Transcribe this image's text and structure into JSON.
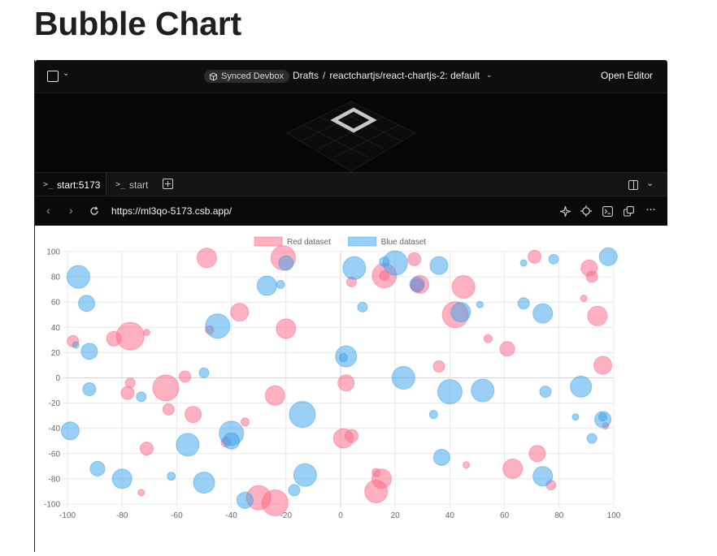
{
  "page": {
    "title": "Bubble Chart"
  },
  "topbar": {
    "devbox_label": "Synced Devbox",
    "breadcrumb": {
      "folder": "Drafts",
      "separator": "/",
      "project": "reactchartjs/react-chartjs-2: default"
    },
    "open_editor_label": "Open Editor"
  },
  "tabs": [
    {
      "glyph": ">_",
      "label": "start:5173",
      "active": true
    },
    {
      "glyph": ">_",
      "label": "start",
      "active": false
    }
  ],
  "browser": {
    "url": "https://ml3qo-5173.csb.app/"
  },
  "icons": {
    "tab_add": "plus-square-icon",
    "split": "split-view-icon",
    "back": "back-arrow-icon",
    "forward": "forward-arrow-icon",
    "reload": "reload-icon",
    "sparkle": "sparkle-icon",
    "crosshair": "crosshair-icon",
    "terminal": "terminal-icon",
    "popout": "popout-icon",
    "more": "more-icon"
  },
  "chart_data": {
    "type": "scatter",
    "subtype": "bubble",
    "title": "",
    "xlabel": "",
    "ylabel": "",
    "xlim": [
      -100,
      100
    ],
    "ylim": [
      -100,
      100
    ],
    "xticks": [
      -100,
      -80,
      -60,
      -40,
      -20,
      0,
      20,
      40,
      60,
      80,
      100
    ],
    "yticks": [
      -100,
      -80,
      -60,
      -40,
      -20,
      0,
      20,
      40,
      60,
      80,
      100
    ],
    "grid": true,
    "legend_position": "top",
    "series": [
      {
        "name": "Red dataset",
        "color": "#ff6384",
        "fill": "rgba(255, 99, 132, 0.5)",
        "points": [
          {
            "x": -49,
            "y": 95,
            "r": 12
          },
          {
            "x": -21,
            "y": 95,
            "r": 15
          },
          {
            "x": -98,
            "y": 29,
            "r": 7
          },
          {
            "x": -83,
            "y": 31,
            "r": 9
          },
          {
            "x": -77,
            "y": 33,
            "r": 17
          },
          {
            "x": -71,
            "y": 36,
            "r": 4
          },
          {
            "x": -48,
            "y": 38,
            "r": 5
          },
          {
            "x": -37,
            "y": 52,
            "r": 11
          },
          {
            "x": -20,
            "y": 39,
            "r": 12
          },
          {
            "x": 4,
            "y": 76,
            "r": 6
          },
          {
            "x": 16,
            "y": 81,
            "r": 15
          },
          {
            "x": 16,
            "y": 81,
            "r": 6
          },
          {
            "x": 27,
            "y": 94,
            "r": 8
          },
          {
            "x": 29,
            "y": 74,
            "r": 11
          },
          {
            "x": 28,
            "y": 73,
            "r": 8
          },
          {
            "x": 45,
            "y": 72,
            "r": 14
          },
          {
            "x": 42,
            "y": 50,
            "r": 16
          },
          {
            "x": 54,
            "y": 31,
            "r": 5
          },
          {
            "x": 61,
            "y": 23,
            "r": 9
          },
          {
            "x": 71,
            "y": 96,
            "r": 8
          },
          {
            "x": 91,
            "y": 87,
            "r": 10
          },
          {
            "x": 92,
            "y": 80,
            "r": 7
          },
          {
            "x": 89,
            "y": 63,
            "r": 4
          },
          {
            "x": 94,
            "y": 49,
            "r": 12
          },
          {
            "x": 96,
            "y": 10,
            "r": 11
          },
          {
            "x": 36,
            "y": 9,
            "r": 7
          },
          {
            "x": -77,
            "y": -4,
            "r": 6
          },
          {
            "x": -78,
            "y": -12,
            "r": 8
          },
          {
            "x": -57,
            "y": 1,
            "r": 7
          },
          {
            "x": -64,
            "y": -8,
            "r": 16
          },
          {
            "x": -63,
            "y": -25,
            "r": 7
          },
          {
            "x": -54,
            "y": -29,
            "r": 10
          },
          {
            "x": -71,
            "y": -56,
            "r": 8
          },
          {
            "x": -35,
            "y": -35,
            "r": 5
          },
          {
            "x": -42,
            "y": -51,
            "r": 6
          },
          {
            "x": -24,
            "y": -14,
            "r": 12
          },
          {
            "x": 2,
            "y": -4,
            "r": 10
          },
          {
            "x": 1,
            "y": -48,
            "r": 12
          },
          {
            "x": 4,
            "y": -46,
            "r": 8
          },
          {
            "x": 13,
            "y": -90,
            "r": 14
          },
          {
            "x": 15,
            "y": -80,
            "r": 12
          },
          {
            "x": 13,
            "y": -75,
            "r": 5
          },
          {
            "x": -30,
            "y": -95,
            "r": 15
          },
          {
            "x": -24,
            "y": -99,
            "r": 16
          },
          {
            "x": -73,
            "y": -91,
            "r": 4
          },
          {
            "x": 46,
            "y": -69,
            "r": 4
          },
          {
            "x": 63,
            "y": -72,
            "r": 12
          },
          {
            "x": 72,
            "y": -60,
            "r": 10
          },
          {
            "x": 77,
            "y": -85,
            "r": 6
          },
          {
            "x": 97,
            "y": -38,
            "r": 4
          }
        ]
      },
      {
        "name": "Blue dataset",
        "color": "#36a2eb",
        "fill": "rgba(54, 162, 235, 0.5)",
        "points": [
          {
            "x": -96,
            "y": 80,
            "r": 14
          },
          {
            "x": -93,
            "y": 59,
            "r": 10
          },
          {
            "x": -92,
            "y": 21,
            "r": 10
          },
          {
            "x": -97,
            "y": 26,
            "r": 4
          },
          {
            "x": -92,
            "y": -9,
            "r": 8
          },
          {
            "x": -99,
            "y": -42,
            "r": 11
          },
          {
            "x": -89,
            "y": -72,
            "r": 9
          },
          {
            "x": -80,
            "y": -80,
            "r": 12
          },
          {
            "x": -73,
            "y": -15,
            "r": 6
          },
          {
            "x": -62,
            "y": -78,
            "r": 5
          },
          {
            "x": -56,
            "y": -53,
            "r": 14
          },
          {
            "x": -50,
            "y": -83,
            "r": 13
          },
          {
            "x": -50,
            "y": 4,
            "r": 6
          },
          {
            "x": -45,
            "y": 41,
            "r": 15
          },
          {
            "x": -40,
            "y": -44,
            "r": 15
          },
          {
            "x": -40,
            "y": -50,
            "r": 10
          },
          {
            "x": -35,
            "y": -97,
            "r": 10
          },
          {
            "x": -27,
            "y": 73,
            "r": 12
          },
          {
            "x": -22,
            "y": 74,
            "r": 5
          },
          {
            "x": -20,
            "y": 91,
            "r": 9
          },
          {
            "x": -14,
            "y": -29,
            "r": 16
          },
          {
            "x": -13,
            "y": -77,
            "r": 14
          },
          {
            "x": -17,
            "y": -89,
            "r": 7
          },
          {
            "x": 2,
            "y": 17,
            "r": 13
          },
          {
            "x": 1,
            "y": 16,
            "r": 5
          },
          {
            "x": 5,
            "y": 87,
            "r": 14
          },
          {
            "x": 8,
            "y": 56,
            "r": 6
          },
          {
            "x": 16,
            "y": 92,
            "r": 6
          },
          {
            "x": 20,
            "y": 91,
            "r": 15
          },
          {
            "x": 23,
            "y": 0,
            "r": 14
          },
          {
            "x": 28,
            "y": 74,
            "r": 9
          },
          {
            "x": 36,
            "y": 89,
            "r": 11
          },
          {
            "x": 34,
            "y": -29,
            "r": 5
          },
          {
            "x": 37,
            "y": -63,
            "r": 10
          },
          {
            "x": 40,
            "y": -11,
            "r": 15
          },
          {
            "x": 44,
            "y": 52,
            "r": 12
          },
          {
            "x": 51,
            "y": 58,
            "r": 4
          },
          {
            "x": 52,
            "y": -10,
            "r": 14
          },
          {
            "x": 67,
            "y": 91,
            "r": 4
          },
          {
            "x": 67,
            "y": 59,
            "r": 7
          },
          {
            "x": 74,
            "y": 51,
            "r": 12
          },
          {
            "x": 75,
            "y": -11,
            "r": 7
          },
          {
            "x": 74,
            "y": -78,
            "r": 12
          },
          {
            "x": 78,
            "y": 94,
            "r": 6
          },
          {
            "x": 88,
            "y": -7,
            "r": 13
          },
          {
            "x": 86,
            "y": -31,
            "r": 4
          },
          {
            "x": 92,
            "y": -48,
            "r": 6
          },
          {
            "x": 96,
            "y": -31,
            "r": 5
          },
          {
            "x": 96,
            "y": -33,
            "r": 10
          },
          {
            "x": 98,
            "y": 96,
            "r": 11
          }
        ]
      }
    ]
  }
}
